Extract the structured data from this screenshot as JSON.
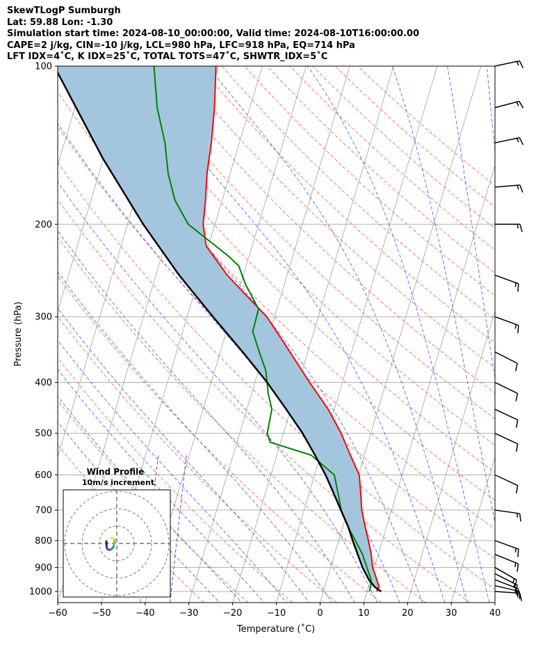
{
  "header": {
    "line1": "SkewTLogP Sumburgh",
    "line2": "Lat: 59.88   Lon: -1.30",
    "line3": "Simulation start time: 2024-08-10_00:00:00, Valid time: 2024-08-10T16:00:00.00",
    "line4": "CAPE=2 j/kg, CIN=-10 j/kg, LCL=980 hPa, LFC=918 hPa, EQ=714 hPa",
    "line5": "LFT IDX=4˚C, K IDX=25˚C, TOTAL TOTS=47˚C, SHWTR_IDX=5˚C"
  },
  "chart_data": [
    {
      "type": "line",
      "subtype": "skew-t log-p",
      "xlabel": "Temperature (˚C)",
      "ylabel": "Pressure (hPa)",
      "xlim": [
        -60,
        40
      ],
      "ylim": [
        1050,
        100
      ],
      "yscale": "log",
      "xticks": [
        -60,
        -50,
        -40,
        -30,
        -20,
        -10,
        0,
        10,
        20,
        30,
        40
      ],
      "xtick_labels": [
        "−60",
        "−50",
        "−40",
        "−30",
        "−20",
        "−10",
        "0",
        "10",
        "20",
        "30",
        "40"
      ],
      "yticks": [
        1000,
        900,
        800,
        700,
        600,
        500,
        400,
        300,
        200,
        100
      ],
      "ytick_labels": [
        "1000",
        "900",
        "800",
        "700",
        "600",
        "500",
        "400",
        "300",
        "200",
        "100"
      ],
      "grid": true,
      "colors": {
        "temperature": "#ff0000",
        "dewpoint": "#008000",
        "parcel": "#000000",
        "cape_fill": "#a3c6de",
        "dry_adiabat": "#ff5a5a",
        "moist_adiabat": "#4a5aff",
        "mixing_ratio": "#8040c0",
        "isotherm": "#a0a0a0",
        "wind_barb": "#000000"
      },
      "series": [
        {
          "role": "temperature",
          "points": [
            {
              "p": 1000,
              "t": 12.2
            },
            {
              "p": 980,
              "t": 12.4
            },
            {
              "p": 950,
              "t": 11.4
            },
            {
              "p": 900,
              "t": 9.6
            },
            {
              "p": 850,
              "t": 8.4
            },
            {
              "p": 800,
              "t": 6.8
            },
            {
              "p": 750,
              "t": 5.0
            },
            {
              "p": 700,
              "t": 3.2
            },
            {
              "p": 650,
              "t": 1.8
            },
            {
              "p": 600,
              "t": 0.2
            },
            {
              "p": 550,
              "t": -3.2
            },
            {
              "p": 500,
              "t": -6.8
            },
            {
              "p": 450,
              "t": -11.4
            },
            {
              "p": 400,
              "t": -17.5
            },
            {
              "p": 360,
              "t": -22.7
            },
            {
              "p": 330,
              "t": -27.0
            },
            {
              "p": 300,
              "t": -31.8
            },
            {
              "p": 270,
              "t": -38.7
            },
            {
              "p": 250,
              "t": -43.7
            },
            {
              "p": 220,
              "t": -50.5
            },
            {
              "p": 200,
              "t": -52.7
            },
            {
              "p": 180,
              "t": -53.8
            },
            {
              "p": 160,
              "t": -55.3
            },
            {
              "p": 140,
              "t": -56.4
            },
            {
              "p": 120,
              "t": -58.1
            },
            {
              "p": 100,
              "t": -60.6
            }
          ]
        },
        {
          "role": "dewpoint",
          "points": [
            {
              "p": 1000,
              "t": 10.5
            },
            {
              "p": 980,
              "t": 10.5
            },
            {
              "p": 950,
              "t": 10.1
            },
            {
              "p": 900,
              "t": 8.3
            },
            {
              "p": 850,
              "t": 6.4
            },
            {
              "p": 800,
              "t": 3.8
            },
            {
              "p": 750,
              "t": 1.0
            },
            {
              "p": 700,
              "t": -1.5
            },
            {
              "p": 650,
              "t": -3.4
            },
            {
              "p": 600,
              "t": -5.5
            },
            {
              "p": 550,
              "t": -12.2
            },
            {
              "p": 520,
              "t": -22.4
            },
            {
              "p": 500,
              "t": -23.7
            },
            {
              "p": 450,
              "t": -24.3
            },
            {
              "p": 420,
              "t": -26.2
            },
            {
              "p": 380,
              "t": -28.3
            },
            {
              "p": 350,
              "t": -31.1
            },
            {
              "p": 320,
              "t": -34.0
            },
            {
              "p": 290,
              "t": -34.2
            },
            {
              "p": 260,
              "t": -38.9
            },
            {
              "p": 240,
              "t": -41.7
            },
            {
              "p": 230,
              "t": -44.7
            },
            {
              "p": 200,
              "t": -56.1
            },
            {
              "p": 180,
              "t": -60.8
            },
            {
              "p": 160,
              "t": -64.2
            },
            {
              "p": 140,
              "t": -67.0
            },
            {
              "p": 120,
              "t": -71.2
            },
            {
              "p": 100,
              "t": -74.8
            }
          ]
        },
        {
          "role": "parcel",
          "points": [
            {
              "p": 1000,
              "t": 13.2
            },
            {
              "p": 980,
              "t": 11.4
            },
            {
              "p": 950,
              "t": 9.6
            },
            {
              "p": 900,
              "t": 7.3
            },
            {
              "p": 850,
              "t": 5.3
            },
            {
              "p": 800,
              "t": 3.2
            },
            {
              "p": 750,
              "t": 1.1
            },
            {
              "p": 700,
              "t": -1.6
            },
            {
              "p": 650,
              "t": -4.4
            },
            {
              "p": 600,
              "t": -7.5
            },
            {
              "p": 550,
              "t": -11.3
            },
            {
              "p": 500,
              "t": -15.6
            },
            {
              "p": 450,
              "t": -21.0
            },
            {
              "p": 400,
              "t": -27.2
            },
            {
              "p": 350,
              "t": -34.9
            },
            {
              "p": 300,
              "t": -44.1
            },
            {
              "p": 250,
              "t": -54.7
            },
            {
              "p": 200,
              "t": -66.4
            },
            {
              "p": 150,
              "t": -80.1
            },
            {
              "p": 100,
              "t": -97.6
            }
          ]
        }
      ],
      "wind_barbs": [
        {
          "p": 1000,
          "speed_kt": 18,
          "dir_deg": 274
        },
        {
          "p": 975,
          "speed_kt": 18,
          "dir_deg": 283
        },
        {
          "p": 950,
          "speed_kt": 18,
          "dir_deg": 291
        },
        {
          "p": 925,
          "speed_kt": 18,
          "dir_deg": 297
        },
        {
          "p": 900,
          "speed_kt": 18,
          "dir_deg": 300
        },
        {
          "p": 850,
          "speed_kt": 18,
          "dir_deg": 292
        },
        {
          "p": 800,
          "speed_kt": 18,
          "dir_deg": 290
        },
        {
          "p": 700,
          "speed_kt": 15,
          "dir_deg": 278
        },
        {
          "p": 600,
          "speed_kt": 13,
          "dir_deg": 295
        },
        {
          "p": 500,
          "speed_kt": 11,
          "dir_deg": 295
        },
        {
          "p": 450,
          "speed_kt": 11,
          "dir_deg": 295
        },
        {
          "p": 400,
          "speed_kt": 12,
          "dir_deg": 296
        },
        {
          "p": 350,
          "speed_kt": 12,
          "dir_deg": 297
        },
        {
          "p": 300,
          "speed_kt": 15,
          "dir_deg": 290
        },
        {
          "p": 250,
          "speed_kt": 16,
          "dir_deg": 290
        },
        {
          "p": 200,
          "speed_kt": 15,
          "dir_deg": 270
        },
        {
          "p": 170,
          "speed_kt": 17,
          "dir_deg": 265
        },
        {
          "p": 140,
          "speed_kt": 18,
          "dir_deg": 258
        },
        {
          "p": 120,
          "speed_kt": 18,
          "dir_deg": 255
        },
        {
          "p": 100,
          "speed_kt": 17,
          "dir_deg": 258
        }
      ]
    },
    {
      "type": "scatter",
      "subtype": "hodograph",
      "title": "Wind Profile",
      "subtitle": "10m/s increment",
      "rings_ms": [
        10,
        20,
        30
      ],
      "points_uv_ms": [
        [
          -6.0,
          1.2
        ],
        [
          -5.9,
          -1.5
        ],
        [
          -5.6,
          -3.0
        ],
        [
          -4.8,
          -3.6
        ],
        [
          -3.9,
          -3.7
        ],
        [
          -2.7,
          -3.0
        ],
        [
          -1.9,
          -2.0
        ],
        [
          -1.6,
          -0.4
        ],
        [
          -1.4,
          1.0
        ],
        [
          -1.1,
          2.2
        ],
        [
          -2.0,
          3.0
        ],
        [
          -3.4,
          3.2
        ]
      ]
    }
  ]
}
